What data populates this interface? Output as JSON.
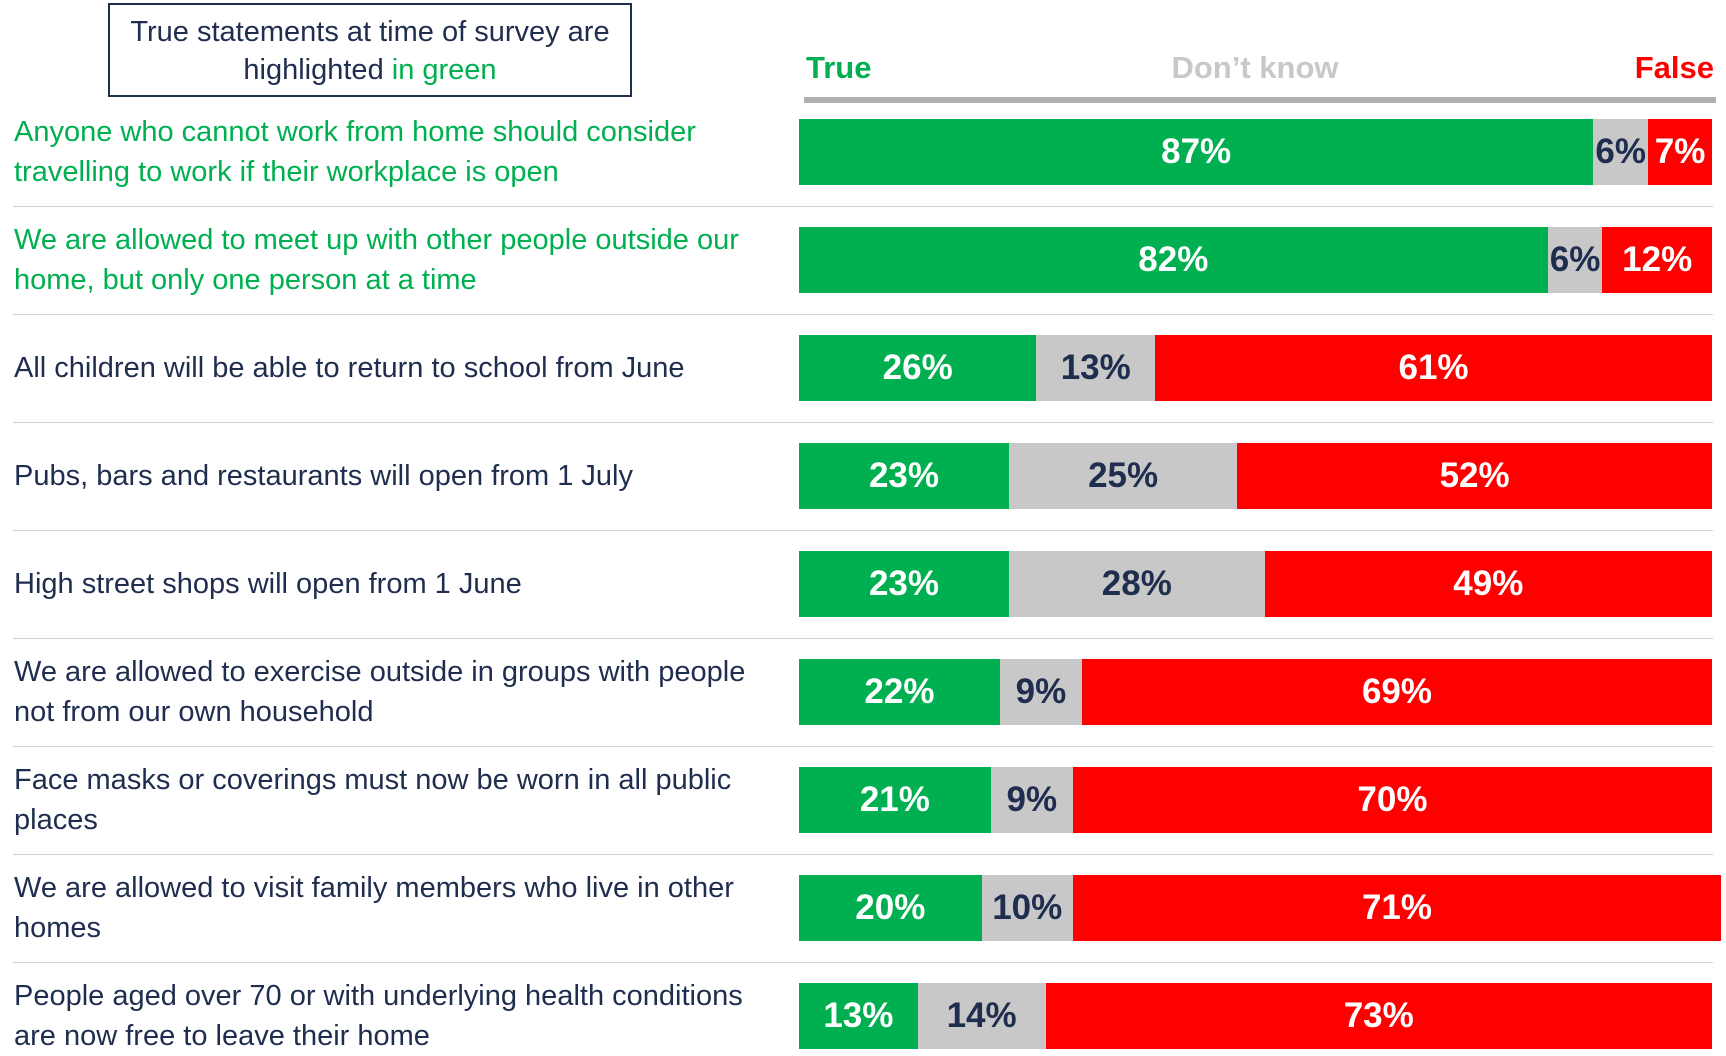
{
  "chart_data": {
    "type": "stacked_bar_horizontal",
    "note": "True statements at time of survey are highlighted",
    "note_highlight": "in green",
    "categories": [
      "Anyone who cannot work from home should consider travelling to work if their workplace is open",
      "We are allowed to meet up with other people outside our home, but only one person at a time",
      "All children will be able to return to school from June",
      "Pubs, bars and restaurants will open from 1 July",
      "High street shops will open from 1 June",
      "We are allowed to exercise outside in groups with people not from our own household",
      "Face masks or coverings must now be worn in all public places",
      "We are allowed to visit family members who live in other homes",
      "People aged over 70 or with underlying health conditions are now free to leave their home"
    ],
    "true_statement": [
      true,
      true,
      false,
      false,
      false,
      false,
      false,
      false,
      false
    ],
    "highlight_color": "#00b050",
    "category_color": "#1f2d4e",
    "xlim": [
      0,
      100
    ],
    "series": [
      {
        "name": "True",
        "color": "#00b050",
        "label_color": "#ffffff",
        "values": [
          87,
          82,
          26,
          23,
          23,
          22,
          21,
          20,
          13
        ],
        "value_labels": [
          "87%",
          "82%",
          "26%",
          "23%",
          "23%",
          "22%",
          "21%",
          "20%",
          "13%"
        ]
      },
      {
        "name": "Don’t know",
        "color": "#c8c8c8",
        "label_color": "#1f2d4e",
        "header_color": "#c8c8c8",
        "values": [
          6,
          6,
          13,
          25,
          28,
          9,
          9,
          10,
          14
        ],
        "value_labels": [
          "6%",
          "6%",
          "13%",
          "25%",
          "28%",
          "9%",
          "9%",
          "10%",
          "14%"
        ]
      },
      {
        "name": "False",
        "color": "#ff0000",
        "label_color": "#ffffff",
        "values": [
          7,
          12,
          61,
          52,
          49,
          69,
          70,
          71,
          73
        ],
        "value_labels": [
          "7%",
          "12%",
          "61%",
          "52%",
          "49%",
          "69%",
          "70%",
          "71%",
          "73%"
        ]
      }
    ]
  }
}
